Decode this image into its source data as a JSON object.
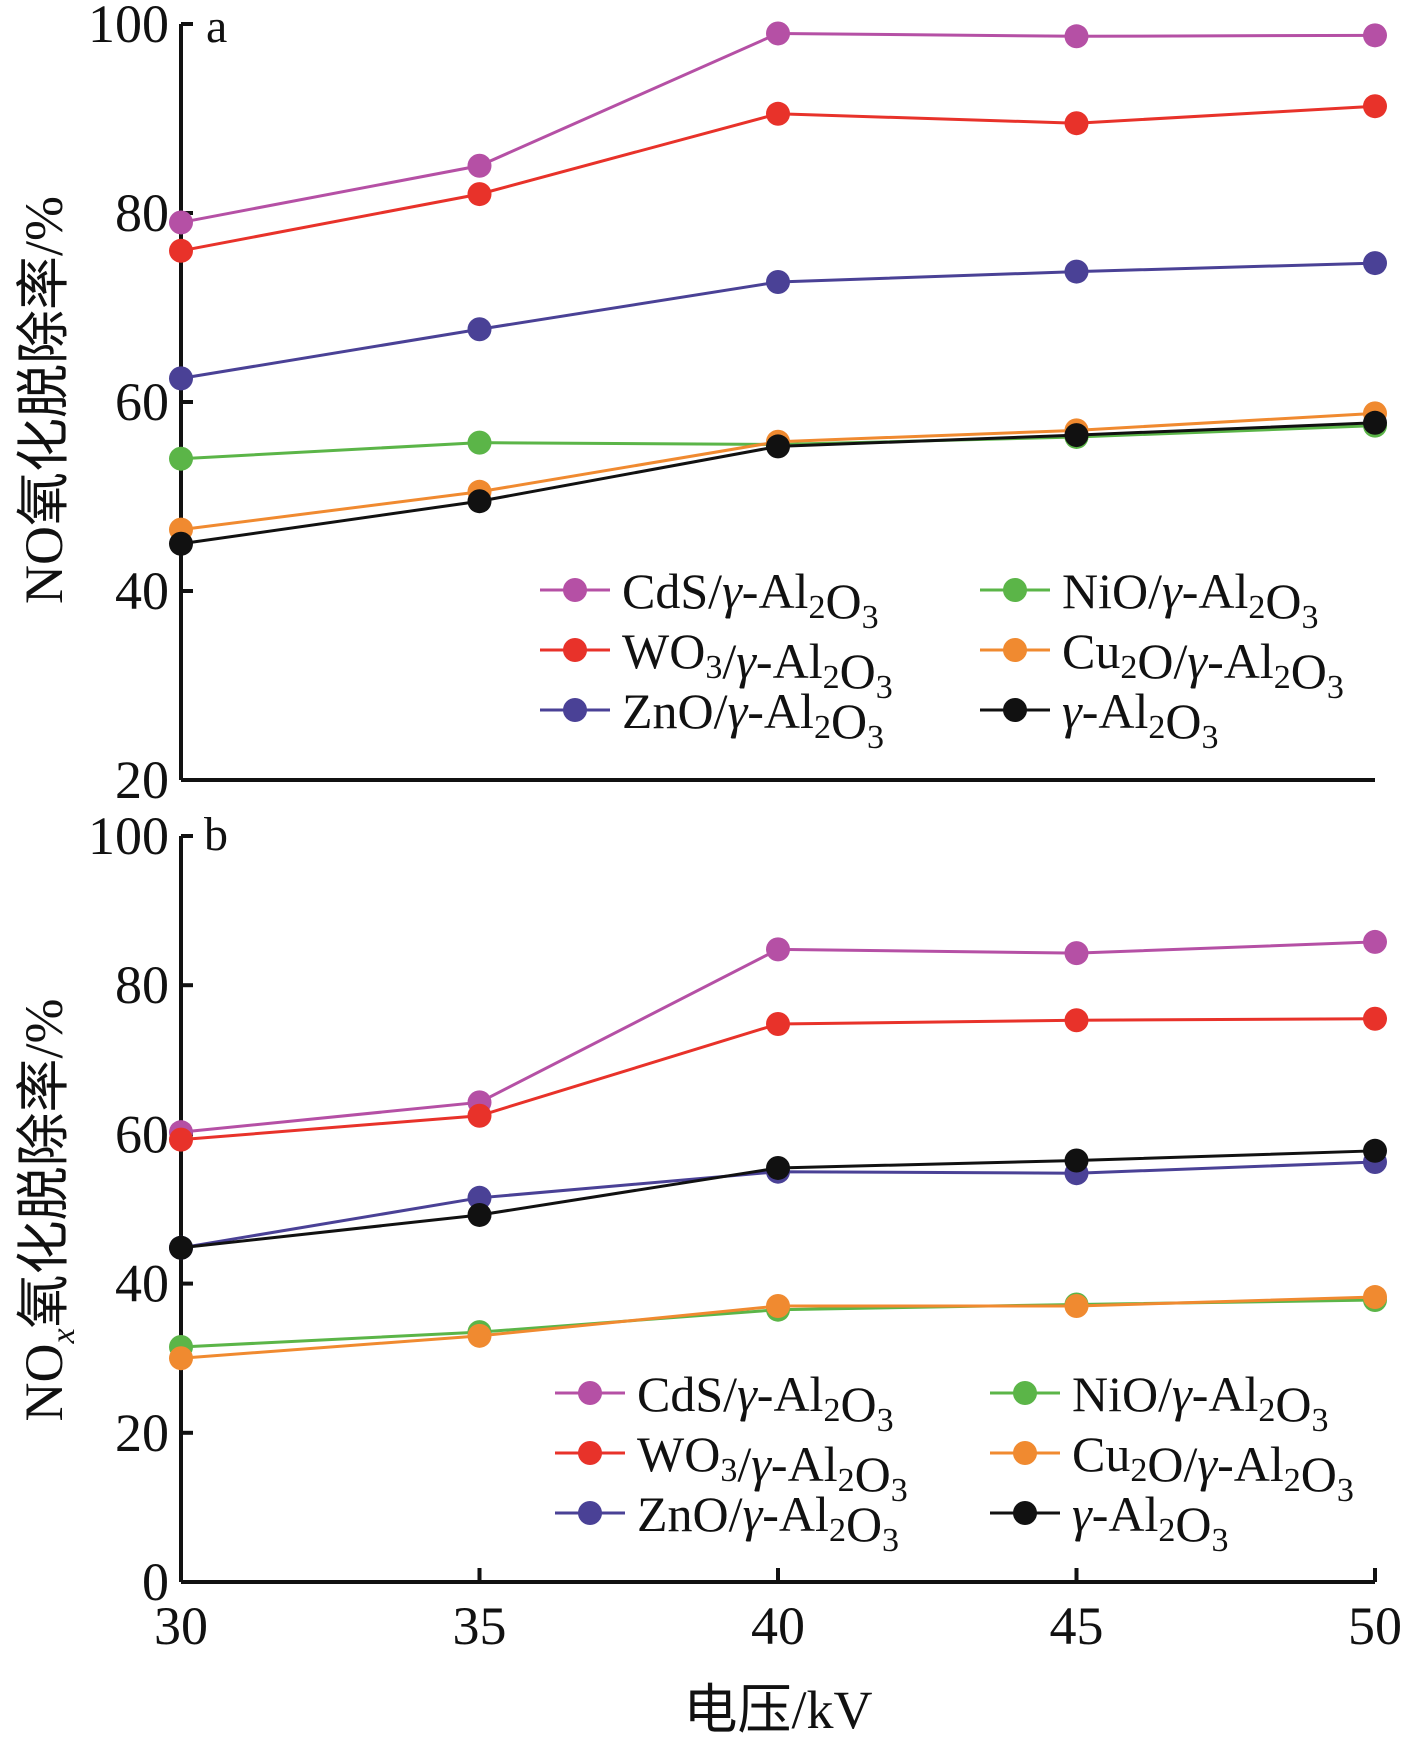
{
  "chart_data": [
    {
      "panel": "a",
      "type": "line",
      "ylabel": "NO氧化脱除率/%",
      "ylim": [
        20,
        100
      ],
      "yticks": [
        20,
        40,
        60,
        80,
        100
      ],
      "x": [
        30,
        35,
        40,
        45,
        50
      ],
      "series": [
        {
          "name": "CdS/γ-Al2O3",
          "color": "#b550a5",
          "values": [
            79,
            85,
            99,
            98.7,
            98.8
          ]
        },
        {
          "name": "WO3/γ-Al2O3",
          "color": "#e8322a",
          "values": [
            76,
            82,
            90.5,
            89.5,
            91.3
          ]
        },
        {
          "name": "ZnO/γ-Al2O3",
          "color": "#4a4196",
          "values": [
            62.5,
            67.7,
            72.7,
            73.8,
            74.7
          ]
        },
        {
          "name": "NiO/γ-Al2O3",
          "color": "#5bb548",
          "values": [
            54,
            55.7,
            55.5,
            56.3,
            57.5
          ]
        },
        {
          "name": "Cu2O/γ-Al2O3",
          "color": "#f08a30",
          "values": [
            46.5,
            50.5,
            55.8,
            57,
            58.8
          ]
        },
        {
          "name": "γ-Al2O3",
          "color": "#111111",
          "values": [
            45,
            49.5,
            55.3,
            56.5,
            57.8
          ]
        }
      ]
    },
    {
      "panel": "b",
      "type": "line",
      "ylabel": "NOx氧化脱除率/%",
      "xlabel": "电压/kV",
      "ylim": [
        0,
        100
      ],
      "yticks": [
        0,
        20,
        40,
        60,
        80,
        100
      ],
      "x": [
        30,
        35,
        40,
        45,
        50
      ],
      "xticks": [
        30,
        35,
        40,
        45,
        50
      ],
      "series": [
        {
          "name": "CdS/γ-Al2O3",
          "color": "#b550a5",
          "values": [
            60.3,
            64.3,
            84.8,
            84.3,
            85.8
          ]
        },
        {
          "name": "WO3/γ-Al2O3",
          "color": "#e8322a",
          "values": [
            59.3,
            62.5,
            74.8,
            75.3,
            75.5
          ]
        },
        {
          "name": "ZnO/γ-Al2O3",
          "color": "#4a4196",
          "values": [
            44.8,
            51.5,
            55,
            54.8,
            56.3
          ]
        },
        {
          "name": "NiO/γ-Al2O3",
          "color": "#5bb548",
          "values": [
            31.5,
            33.5,
            36.5,
            37.2,
            37.8
          ]
        },
        {
          "name": "Cu2O/γ-Al2O3",
          "color": "#f08a30",
          "values": [
            30,
            33,
            37,
            37,
            38.2
          ]
        },
        {
          "name": "γ-Al2O3",
          "color": "#111111",
          "values": [
            44.8,
            49.2,
            55.5,
            56.5,
            57.8
          ]
        }
      ]
    }
  ],
  "labels": {
    "panel_a": "a",
    "panel_b": "b",
    "ylabel_a": "NO氧化脱除率/%",
    "ylabel_b_pre": "NO",
    "ylabel_b_sub": "x",
    "ylabel_b_post": "氧化脱除率/%",
    "xlabel": "电压/kV"
  }
}
